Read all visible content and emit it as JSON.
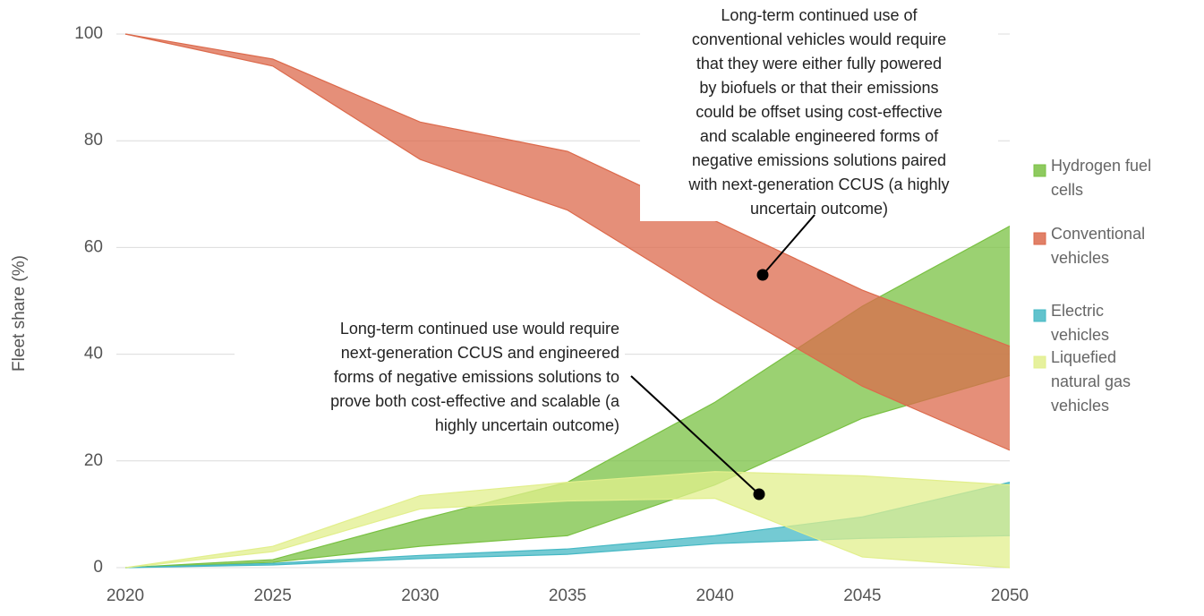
{
  "chart_data": {
    "type": "band",
    "y_label": "Fleet share (%)",
    "x": [
      2020,
      2025,
      2030,
      2035,
      2040,
      2045,
      2050
    ],
    "xlim": [
      2020,
      2050
    ],
    "xticks": [
      2020,
      2025,
      2030,
      2035,
      2040,
      2045,
      2050
    ],
    "ylim": [
      0,
      100
    ],
    "yticks": [
      0,
      20,
      40,
      60,
      80,
      100
    ],
    "grid": true,
    "legend": "right",
    "series": [
      {
        "name": "Hydrogen fuel cells",
        "color": "#7ac143",
        "high": [
          0,
          1.5,
          9,
          16,
          31,
          49,
          64
        ],
        "low": [
          0,
          1,
          4,
          6,
          15.5,
          28,
          36
        ]
      },
      {
        "name": "Conventional vehicles",
        "color": "#dc6a4c",
        "high": [
          100,
          95.3,
          83.5,
          78,
          65,
          52,
          41.5
        ],
        "low": [
          100,
          94,
          76.5,
          67,
          50,
          34,
          22
        ]
      },
      {
        "name": "Electric vehicles",
        "color": "#45b8c4",
        "high": [
          0,
          0.8,
          2.3,
          3.5,
          6,
          9.5,
          16
        ],
        "low": [
          0,
          0.5,
          1.7,
          2.5,
          4.5,
          5.5,
          6
        ]
      },
      {
        "name": "Liquefied natural gas vehicles",
        "color": "#e2ef8c",
        "high": [
          0,
          4,
          13.5,
          16,
          18,
          17.2,
          15.5
        ],
        "low": [
          0,
          3,
          11,
          12.5,
          13,
          2,
          0
        ]
      }
    ],
    "annotations": [
      {
        "lines": [
          "Long-term continued use of",
          "conventional vehicles would require",
          "that they were either fully powered",
          "by biofuels or that their emissions",
          "could be offset using cost-effective",
          "and scalable engineered forms of",
          "negative emissions solutions paired",
          "with next-generation CCUS (a highly",
          "uncertain outcome)"
        ]
      },
      {
        "lines": [
          "Long-term continued use would require",
          "next-generation CCUS and engineered",
          "forms of negative emissions solutions to",
          "prove both cost-effective and scalable (a",
          "highly uncertain outcome)"
        ]
      }
    ]
  }
}
